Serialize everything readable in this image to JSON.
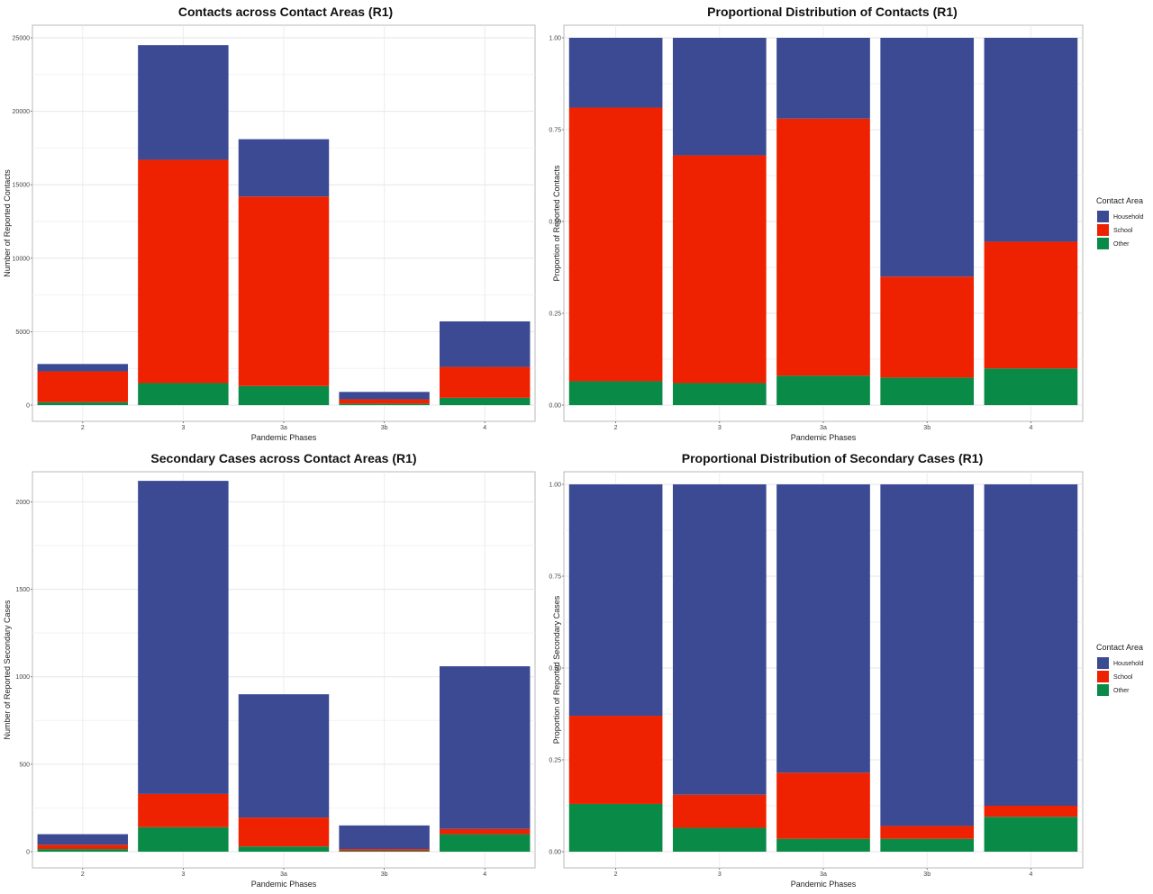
{
  "colors": {
    "Household": "#3b4a93",
    "School": "#ee2200",
    "Other": "#0a8a47"
  },
  "legend": {
    "title": "Contact Area",
    "items": [
      "Household",
      "School",
      "Other"
    ]
  },
  "chart_data": [
    {
      "type": "bar",
      "stacked": true,
      "title": "Contacts across Contact Areas (R1)",
      "xlabel": "Pandemic Phases",
      "ylabel": "Number of Reported Contacts",
      "categories": [
        "2",
        "3",
        "3a",
        "3b",
        "4"
      ],
      "ylim": [
        0,
        25000
      ],
      "yticks": [
        0,
        5000,
        10000,
        15000,
        20000,
        25000
      ],
      "ytick_labels": [
        "0",
        "5000",
        "10000",
        "15000",
        "20000",
        "25000"
      ],
      "series": [
        {
          "name": "Other",
          "values": [
            200,
            1500,
            1300,
            100,
            500
          ]
        },
        {
          "name": "School",
          "values": [
            2100,
            15200,
            12900,
            300,
            2100
          ]
        },
        {
          "name": "Household",
          "values": [
            500,
            7800,
            3900,
            500,
            3100
          ]
        }
      ],
      "grid": true
    },
    {
      "type": "bar",
      "stacked": true,
      "title": "Proportional Distribution of Contacts (R1)",
      "xlabel": "Pandemic Phases",
      "ylabel": "Proportion of Reported Contacts",
      "categories": [
        "2",
        "3",
        "3a",
        "3b",
        "4"
      ],
      "ylim": [
        0,
        1
      ],
      "yticks": [
        0,
        0.25,
        0.5,
        0.75,
        1
      ],
      "ytick_labels": [
        "0.00",
        "0.25",
        "0.50",
        "0.75",
        "1.00"
      ],
      "series": [
        {
          "name": "Other",
          "values": [
            0.065,
            0.06,
            0.08,
            0.075,
            0.1
          ]
        },
        {
          "name": "School",
          "values": [
            0.745,
            0.62,
            0.7,
            0.275,
            0.345
          ]
        },
        {
          "name": "Household",
          "values": [
            0.19,
            0.32,
            0.22,
            0.65,
            0.555
          ]
        }
      ],
      "legend": "right",
      "grid": true
    },
    {
      "type": "bar",
      "stacked": true,
      "title": "Secondary Cases across Contact Areas (R1)",
      "xlabel": "Pandemic Phases",
      "ylabel": "Number of Reported Secondary Cases",
      "categories": [
        "2",
        "3",
        "3a",
        "3b",
        "4"
      ],
      "ylim": [
        0,
        2100
      ],
      "yticks": [
        0,
        500,
        1000,
        1500,
        2000
      ],
      "ytick_labels": [
        "0",
        "500",
        "1000",
        "1500",
        "2000"
      ],
      "series": [
        {
          "name": "Other",
          "values": [
            15,
            140,
            30,
            5,
            100
          ]
        },
        {
          "name": "School",
          "values": [
            25,
            190,
            165,
            10,
            30
          ]
        },
        {
          "name": "Household",
          "values": [
            60,
            1790,
            705,
            135,
            930
          ]
        }
      ],
      "grid": true
    },
    {
      "type": "bar",
      "stacked": true,
      "title": "Proportional Distribution of Secondary Cases (R1)",
      "xlabel": "Pandemic Phases",
      "ylabel": "Proportion of Reported Secondary Cases",
      "categories": [
        "2",
        "3",
        "3a",
        "3b",
        "4"
      ],
      "ylim": [
        0,
        1
      ],
      "yticks": [
        0,
        0.25,
        0.5,
        0.75,
        1
      ],
      "ytick_labels": [
        "0.00",
        "0.25",
        "0.50",
        "0.75",
        "1.00"
      ],
      "series": [
        {
          "name": "Other",
          "values": [
            0.13,
            0.065,
            0.035,
            0.035,
            0.095
          ]
        },
        {
          "name": "School",
          "values": [
            0.24,
            0.09,
            0.18,
            0.035,
            0.03
          ]
        },
        {
          "name": "Household",
          "values": [
            0.63,
            0.845,
            0.785,
            0.93,
            0.875
          ]
        }
      ],
      "legend": "right",
      "grid": true
    }
  ]
}
